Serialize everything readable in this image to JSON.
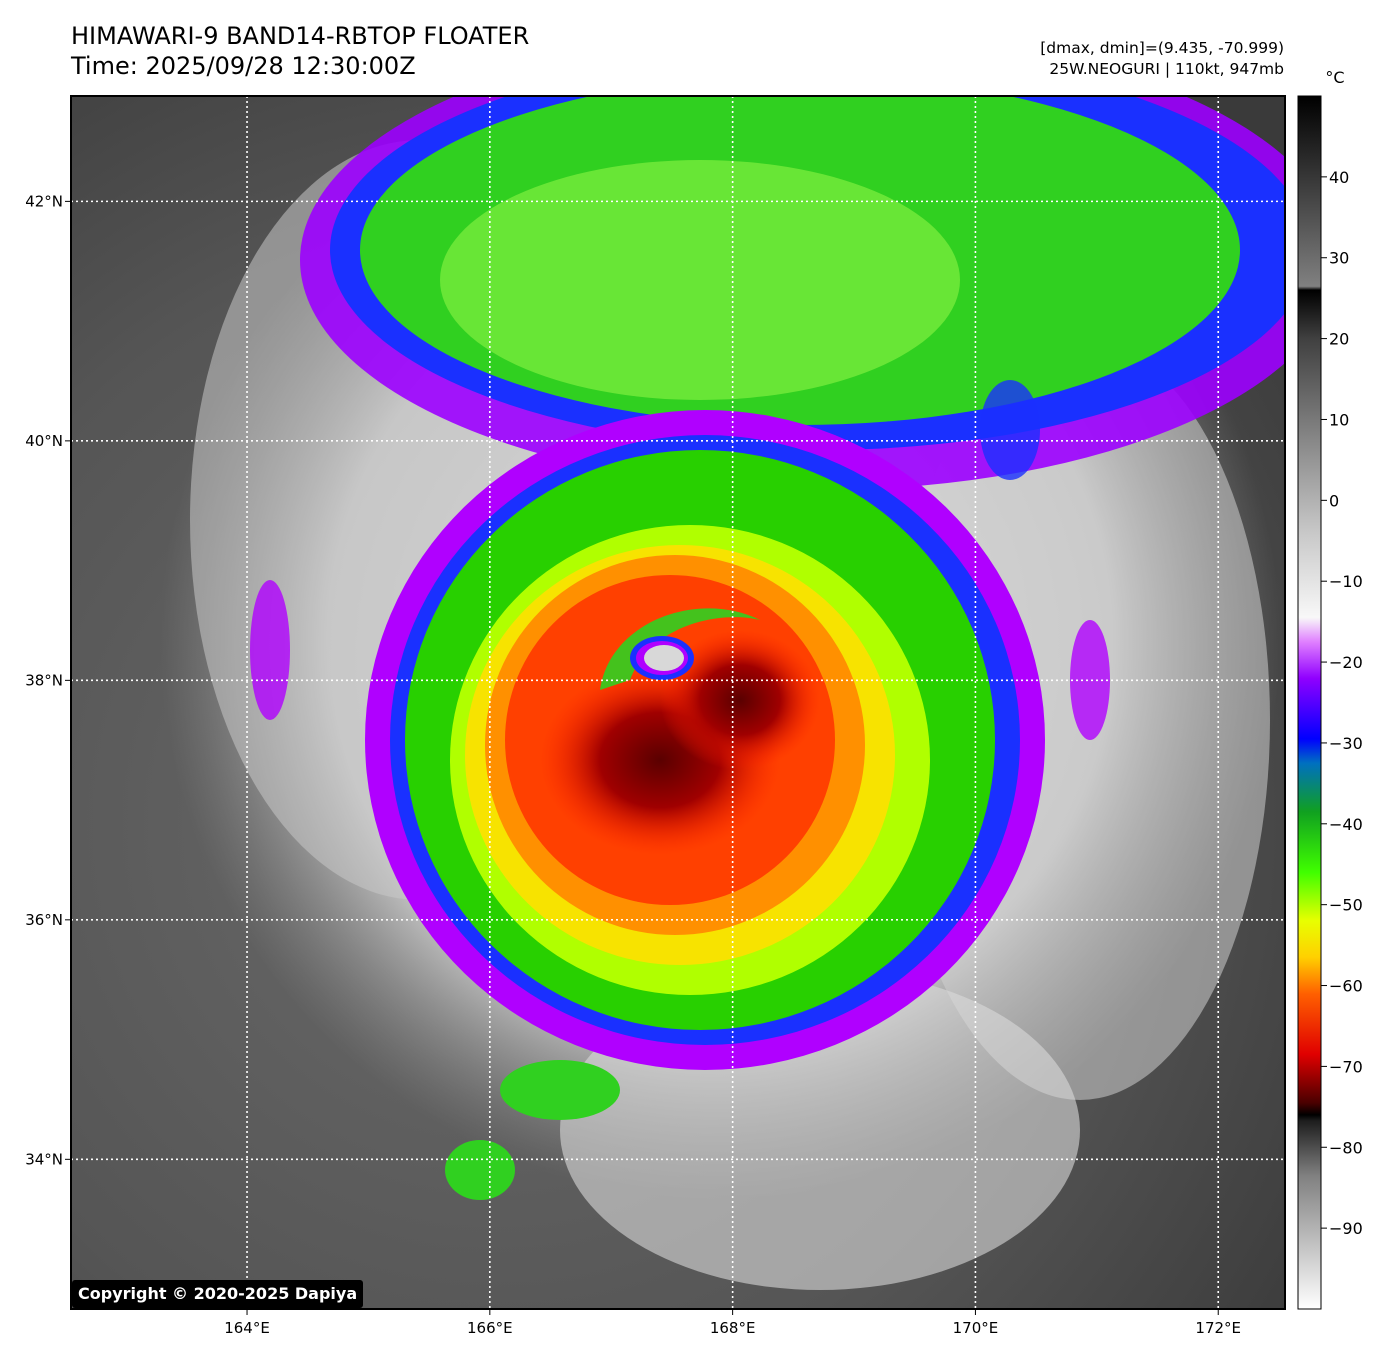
{
  "title_line1": "HIMAWARI-9 BAND14-RBTOP FLOATER",
  "title_line2": "Time: 2025/09/28 12:30:00Z",
  "info_line1": "[dmax, dmin]=(9.435, -70.999)",
  "info_line2": "25W.NEOGURI | 110kt, 947mb",
  "colorbar_unit": "°C",
  "copyright": "Copyright © 2020-2025 Dapiya",
  "lon_ticks": [
    {
      "label": "164°E",
      "lon": 164
    },
    {
      "label": "166°E",
      "lon": 166
    },
    {
      "label": "168°E",
      "lon": 168
    },
    {
      "label": "170°E",
      "lon": 170
    },
    {
      "label": "172°E",
      "lon": 172
    }
  ],
  "lat_ticks": [
    {
      "label": "42°N",
      "lat": 42
    },
    {
      "label": "40°N",
      "lat": 40
    },
    {
      "label": "38°N",
      "lat": 38
    },
    {
      "label": "36°N",
      "lat": 36
    },
    {
      "label": "34°N",
      "lat": 34
    }
  ],
  "colorbar_ticks": [
    {
      "label": "40",
      "value": 40
    },
    {
      "label": "30",
      "value": 30
    },
    {
      "label": "20",
      "value": 20
    },
    {
      "label": "10",
      "value": 10
    },
    {
      "label": "0",
      "value": 0
    },
    {
      "label": "−10",
      "value": -10
    },
    {
      "label": "−20",
      "value": -20
    },
    {
      "label": "−30",
      "value": -30
    },
    {
      "label": "−40",
      "value": -40
    },
    {
      "label": "−50",
      "value": -50
    },
    {
      "label": "−60",
      "value": -60
    },
    {
      "label": "−70",
      "value": -70
    },
    {
      "label": "−80",
      "value": -80
    },
    {
      "label": "−90",
      "value": -90
    }
  ],
  "colorbar_range": [
    -100,
    50
  ],
  "map_extent": {
    "lon_min": 162.55,
    "lon_max": 172.55,
    "lat_min": 32.75,
    "lat_max": 42.88
  },
  "storm_center": {
    "lon": 167.5,
    "lat": 38.2
  },
  "colors": {
    "background_gray": "#5a5a5a",
    "cloud_white": "#e8e8e8",
    "purple": "#b000ff",
    "blue": "#1a20ff",
    "green": "#28e000",
    "yellow": "#e8ff00",
    "orange": "#ff9000",
    "red": "#ff2000",
    "dark_red": "#6a0000"
  }
}
